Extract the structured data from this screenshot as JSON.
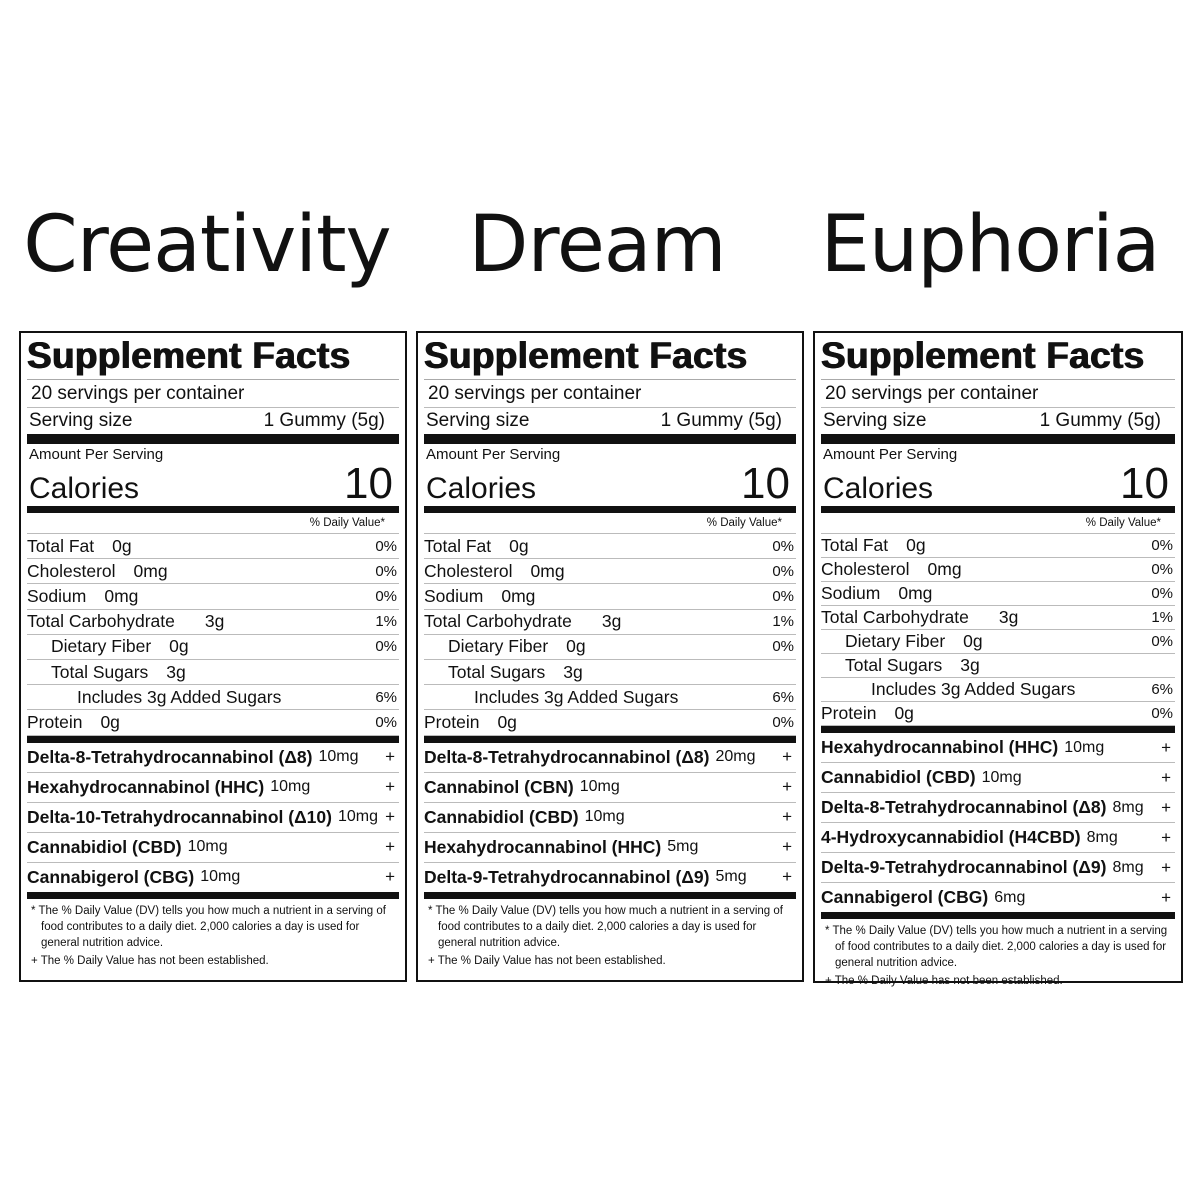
{
  "panels": [
    {
      "heading": "Creativity",
      "title": "Supplement Facts",
      "servings": "20 servings per container",
      "serving_size_label": "Serving size",
      "serving_size_value": "1 Gummy (5g)",
      "amount_per_serving": "Amount Per Serving",
      "calories_label": "Calories",
      "calories_value": "10",
      "dv_header": "% Daily Value*",
      "nutrients": [
        {
          "label": "Total Fat",
          "amount": "0g",
          "dv": "0%",
          "indent": 0
        },
        {
          "label": "Cholesterol",
          "amount": "0mg",
          "dv": "0%",
          "indent": 0
        },
        {
          "label": "Sodium",
          "amount": "0mg",
          "dv": "0%",
          "indent": 0
        },
        {
          "label": "Total Carbohydrate",
          "amount": "3g",
          "dv": "1%",
          "indent": 0
        },
        {
          "label": "Dietary Fiber",
          "amount": "0g",
          "dv": "0%",
          "indent": 1
        },
        {
          "label": "Total Sugars",
          "amount": "3g",
          "dv": "",
          "indent": 1
        },
        {
          "label": "Includes 3g Added Sugars",
          "amount": "",
          "dv": "6%",
          "indent": 2
        },
        {
          "label": "Protein",
          "amount": "0g",
          "dv": "0%",
          "indent": 0
        }
      ],
      "ingredients": [
        {
          "name": "Delta-8-Tetrahydrocannabinol (Δ8)",
          "amount": "10mg",
          "dv": "+"
        },
        {
          "name": "Hexahydrocannabinol (HHC)",
          "amount": "10mg",
          "dv": "+"
        },
        {
          "name": "Delta-10-Tetrahydrocannabinol (Δ10)",
          "amount": "10mg",
          "dv": "+"
        },
        {
          "name": "Cannabidiol (CBD)",
          "amount": "10mg",
          "dv": "+"
        },
        {
          "name": "Cannabigerol (CBG)",
          "amount": "10mg",
          "dv": "+"
        }
      ],
      "footnotes": [
        "* The % Daily Value (DV) tells you how much a nutrient in a serving of food contributes to a daily diet. 2,000 calories a day is used for general nutrition advice.",
        "+ The % Daily Value has not been established."
      ]
    },
    {
      "heading": "Dream",
      "title": "Supplement Facts",
      "servings": "20 servings per container",
      "serving_size_label": "Serving size",
      "serving_size_value": "1 Gummy (5g)",
      "amount_per_serving": "Amount Per Serving",
      "calories_label": "Calories",
      "calories_value": "10",
      "dv_header": "% Daily Value*",
      "nutrients": [
        {
          "label": "Total Fat",
          "amount": "0g",
          "dv": "0%",
          "indent": 0
        },
        {
          "label": "Cholesterol",
          "amount": "0mg",
          "dv": "0%",
          "indent": 0
        },
        {
          "label": "Sodium",
          "amount": "0mg",
          "dv": "0%",
          "indent": 0
        },
        {
          "label": "Total Carbohydrate",
          "amount": "3g",
          "dv": "1%",
          "indent": 0
        },
        {
          "label": "Dietary Fiber",
          "amount": "0g",
          "dv": "0%",
          "indent": 1
        },
        {
          "label": "Total Sugars",
          "amount": "3g",
          "dv": "",
          "indent": 1
        },
        {
          "label": "Includes 3g Added Sugars",
          "amount": "",
          "dv": "6%",
          "indent": 2
        },
        {
          "label": "Protein",
          "amount": "0g",
          "dv": "0%",
          "indent": 0
        }
      ],
      "ingredients": [
        {
          "name": "Delta-8-Tetrahydrocannabinol (Δ8)",
          "amount": "20mg",
          "dv": "+"
        },
        {
          "name": "Cannabinol (CBN)",
          "amount": "10mg",
          "dv": "+"
        },
        {
          "name": "Cannabidiol (CBD)",
          "amount": "10mg",
          "dv": "+"
        },
        {
          "name": "Hexahydrocannabinol (HHC)",
          "amount": "5mg",
          "dv": "+"
        },
        {
          "name": "Delta-9-Tetrahydrocannabinol (Δ9)",
          "amount": "5mg",
          "dv": "+"
        }
      ],
      "footnotes": [
        "* The % Daily Value (DV) tells you how much a nutrient in a serving of food contributes to a daily diet. 2,000 calories a day is used for general nutrition advice.",
        "+ The % Daily Value has not been established."
      ]
    },
    {
      "heading": "Euphoria",
      "title": "Supplement Facts",
      "servings": "20 servings per container",
      "serving_size_label": "Serving size",
      "serving_size_value": "1 Gummy (5g)",
      "amount_per_serving": "Amount Per Serving",
      "calories_label": "Calories",
      "calories_value": "10",
      "dv_header": "% Daily Value*",
      "nutrients": [
        {
          "label": "Total Fat",
          "amount": "0g",
          "dv": "0%",
          "indent": 0
        },
        {
          "label": "Cholesterol",
          "amount": "0mg",
          "dv": "0%",
          "indent": 0
        },
        {
          "label": "Sodium",
          "amount": "0mg",
          "dv": "0%",
          "indent": 0
        },
        {
          "label": "Total Carbohydrate",
          "amount": "3g",
          "dv": "1%",
          "indent": 0
        },
        {
          "label": "Dietary Fiber",
          "amount": "0g",
          "dv": "0%",
          "indent": 1
        },
        {
          "label": "Total Sugars",
          "amount": "3g",
          "dv": "",
          "indent": 1
        },
        {
          "label": "Includes 3g Added Sugars",
          "amount": "",
          "dv": "6%",
          "indent": 2
        },
        {
          "label": "Protein",
          "amount": "0g",
          "dv": "0%",
          "indent": 0
        }
      ],
      "ingredients": [
        {
          "name": "Hexahydrocannabinol (HHC)",
          "amount": "10mg",
          "dv": "+"
        },
        {
          "name": "Cannabidiol (CBD)",
          "amount": "10mg",
          "dv": "+"
        },
        {
          "name": "Delta-8-Tetrahydrocannabinol (Δ8)",
          "amount": "8mg",
          "dv": "+"
        },
        {
          "name": "4-Hydroxycannabidiol (H4CBD)",
          "amount": "8mg",
          "dv": "+"
        },
        {
          "name": "Delta-9-Tetrahydrocannabinol (Δ9)",
          "amount": "8mg",
          "dv": "+"
        },
        {
          "name": "Cannabigerol (CBG)",
          "amount": "6mg",
          "dv": "+"
        }
      ],
      "footnotes": [
        "* The % Daily Value (DV) tells you how much a nutrient in a serving of food contributes to a daily diet. 2,000 calories a day is used for general nutrition advice.",
        "+ The % Daily Value has not been established."
      ]
    }
  ]
}
